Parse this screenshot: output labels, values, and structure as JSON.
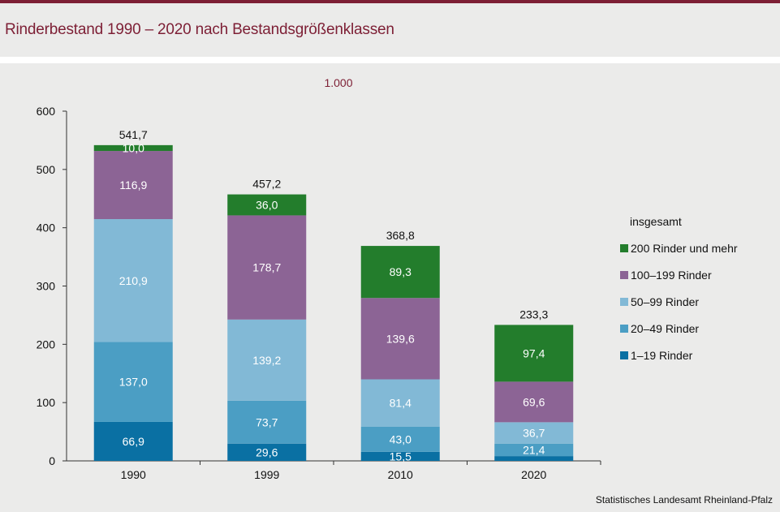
{
  "header": {
    "title": "Rinderbestand 1990 – 2020 nach Bestandsgrößenklassen"
  },
  "source": "Statistisches Landesamt Rheinland-Pfalz",
  "unit_label": "1.000",
  "colors": {
    "accent": "#7d1f35",
    "background": "#ebebea"
  },
  "chart_data": {
    "type": "bar",
    "stacked": true,
    "title": "Rinderbestand 1990 – 2020 nach Bestandsgrößenklassen",
    "unit": "1.000",
    "categories": [
      "1990",
      "1999",
      "2010",
      "2020"
    ],
    "totals_label": "insgesamt",
    "totals": [
      541.7,
      457.2,
      368.8,
      233.3
    ],
    "totals_text": [
      "541,7",
      "457,2",
      "368,8",
      "233,3"
    ],
    "series": [
      {
        "name": "1–19 Rinder",
        "color": "#0a70a3",
        "values": [
          66.9,
          29.6,
          15.5,
          8.2
        ],
        "labels": [
          "66,9",
          "29,6",
          "15,5",
          ""
        ]
      },
      {
        "name": "20–49 Rinder",
        "color": "#4b9ec4",
        "values": [
          137.0,
          73.7,
          43.0,
          21.4
        ],
        "labels": [
          "137,0",
          "73,7",
          "43,0",
          "21,4"
        ]
      },
      {
        "name": "50–99 Rinder",
        "color": "#82b9d6",
        "values": [
          210.9,
          139.2,
          81.4,
          36.7
        ],
        "labels": [
          "210,9",
          "139,2",
          "81,4",
          "36,7"
        ]
      },
      {
        "name": "100–199 Rinder",
        "color": "#8c6495",
        "values": [
          116.9,
          178.7,
          139.6,
          69.6
        ],
        "labels": [
          "116,9",
          "178,7",
          "139,6",
          "69,6"
        ]
      },
      {
        "name": "200 Rinder und mehr",
        "color": "#237d2c",
        "values": [
          10.0,
          36.0,
          89.3,
          97.4
        ],
        "labels": [
          "10,0",
          "36,0",
          "89,3",
          "97,4"
        ]
      }
    ],
    "ylim": [
      0,
      600
    ],
    "yticks": [
      0,
      100,
      200,
      300,
      400,
      500,
      600
    ],
    "legend_position": "right",
    "grid": false
  }
}
